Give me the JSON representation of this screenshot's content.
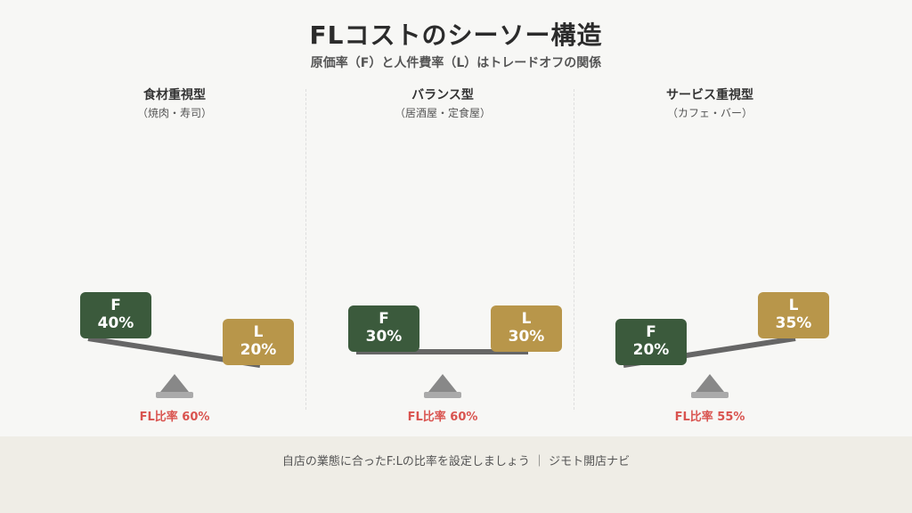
{
  "title": "FLコストのシーソー構造",
  "subtitle": "原価率（F）と人件費率（L）はトレードオフの関係",
  "colors": {
    "food": "#3b5a3c",
    "labor": "#b8964a",
    "beam": "#666666",
    "ratio": "#d9534f"
  },
  "panels": [
    {
      "title": "食材重視型",
      "subtitle": "（焼肉・寿司）",
      "f_label": "F",
      "f_value": "40%",
      "l_label": "L",
      "l_value": "20%",
      "f": 40,
      "l": 20,
      "ratio": "FL比率 60%"
    },
    {
      "title": "バランス型",
      "subtitle": "（居酒屋・定食屋）",
      "f_label": "F",
      "f_value": "30%",
      "l_label": "L",
      "l_value": "30%",
      "f": 30,
      "l": 30,
      "ratio": "FL比率 60%"
    },
    {
      "title": "サービス重視型",
      "subtitle": "（カフェ・バー）",
      "f_label": "F",
      "f_value": "20%",
      "l_label": "L",
      "l_value": "35%",
      "f": 20,
      "l": 35,
      "ratio": "FL比率 55%"
    }
  ],
  "footer": "自店の業態に合ったF:Lの比率を設定しましょう ｜ ジモト開店ナビ"
}
